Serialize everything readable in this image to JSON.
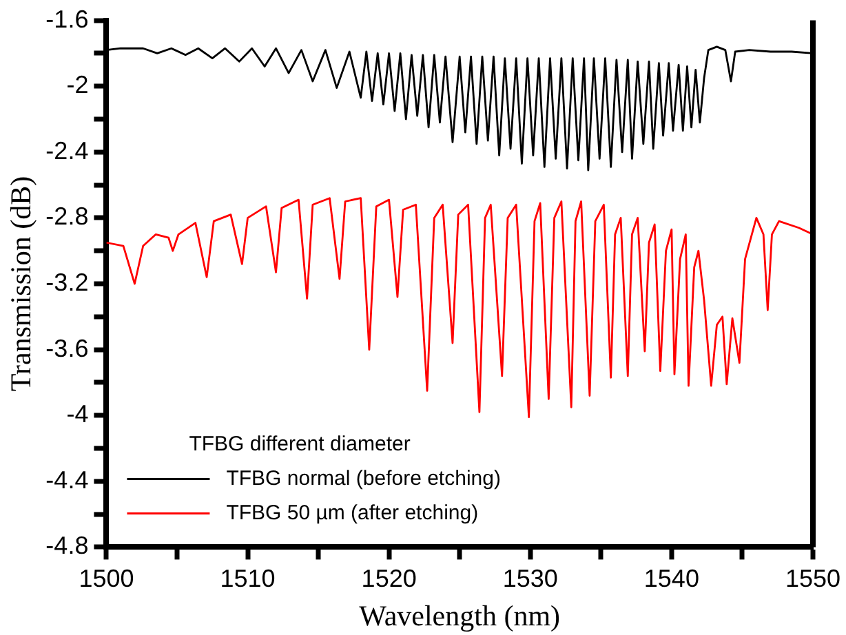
{
  "chart_data": {
    "type": "line",
    "xlabel": "Wavelength (nm)",
    "ylabel": "Transmission (dB)",
    "legend_title": "TFBG different diameter",
    "legend": "bottom left",
    "grid": false,
    "marker": "none",
    "line_style": "solid",
    "xlim": [
      1500,
      1550
    ],
    "xticks": [
      1500,
      {
        "value": 1505,
        "label": null
      },
      1510,
      {
        "value": 1515,
        "label": null
      },
      1520,
      {
        "value": 1525,
        "label": null
      },
      1530,
      {
        "value": 1535,
        "label": null
      },
      1540,
      {
        "value": 1545,
        "label": null
      },
      1550
    ],
    "ylim": [
      -4.8,
      -1.6
    ],
    "yticks": [
      -4.8,
      {
        "value": -4.6,
        "label": null
      },
      -4.4,
      {
        "value": -4.2,
        "label": null
      },
      -4,
      {
        "value": -3.8,
        "label": null
      },
      -3.6,
      {
        "value": -3.4,
        "label": null
      },
      -3.2,
      {
        "value": -3,
        "label": null
      },
      -2.8,
      {
        "value": -2.6,
        "label": null
      },
      -2.4,
      {
        "value": -2.2,
        "label": null
      },
      -2,
      {
        "value": -1.8,
        "label": null
      },
      -1.6
    ],
    "series": [
      {
        "name": "TFBG normal (before etching)",
        "color": "#000000",
        "x": [
          1500,
          1501,
          1502.6,
          1503.6,
          1504.6,
          1505.6,
          1506.5,
          1507.5,
          1508.4,
          1509.4,
          1510.3,
          1511.2,
          1512,
          1512.9,
          1513.8,
          1514.6,
          1515.5,
          1516.3,
          1517.2,
          1518,
          1518.4,
          1518.8,
          1519.2,
          1519.6,
          1520,
          1520.4,
          1520.8,
          1521.2,
          1521.6,
          1522,
          1522.4,
          1522.8,
          1523.2,
          1523.6,
          1524,
          1524.5,
          1525,
          1525.4,
          1525.8,
          1526.2,
          1526.6,
          1527,
          1527.4,
          1527.8,
          1528.2,
          1528.6,
          1529,
          1529.4,
          1529.8,
          1530.2,
          1530.6,
          1531,
          1531.4,
          1531.8,
          1532.2,
          1532.6,
          1533,
          1533.4,
          1533.8,
          1534.1,
          1534.5,
          1534.9,
          1535.3,
          1535.7,
          1536.1,
          1536.5,
          1536.9,
          1537.2,
          1537.6,
          1538,
          1538.4,
          1538.7,
          1539.1,
          1539.4,
          1539.8,
          1540.1,
          1540.5,
          1540.8,
          1541.1,
          1541.4,
          1541.7,
          1542,
          1542.3,
          1542.6,
          1543.2,
          1543.8,
          1544.2,
          1544.5,
          1545.5,
          1547,
          1548.5,
          1550
        ],
        "values": [
          -1.78,
          -1.77,
          -1.77,
          -1.8,
          -1.77,
          -1.81,
          -1.77,
          -1.83,
          -1.77,
          -1.85,
          -1.77,
          -1.88,
          -1.77,
          -1.92,
          -1.78,
          -1.97,
          -1.78,
          -2.01,
          -1.79,
          -2.07,
          -1.79,
          -2.09,
          -1.8,
          -2.11,
          -1.8,
          -2.15,
          -1.8,
          -2.2,
          -1.81,
          -2.18,
          -1.81,
          -2.25,
          -1.81,
          -2.22,
          -1.82,
          -2.34,
          -1.82,
          -2.28,
          -1.82,
          -2.35,
          -1.82,
          -2.33,
          -1.82,
          -2.42,
          -1.83,
          -2.38,
          -1.83,
          -2.47,
          -1.83,
          -2.42,
          -1.83,
          -2.49,
          -1.83,
          -2.44,
          -1.83,
          -2.5,
          -1.83,
          -2.45,
          -1.83,
          -2.51,
          -1.83,
          -2.44,
          -1.83,
          -2.49,
          -1.84,
          -2.4,
          -1.84,
          -2.44,
          -1.85,
          -2.35,
          -1.85,
          -2.38,
          -1.86,
          -2.3,
          -1.86,
          -2.27,
          -1.87,
          -2.27,
          -1.88,
          -2.25,
          -1.9,
          -2.22,
          -1.95,
          -1.78,
          -1.76,
          -1.78,
          -1.97,
          -1.79,
          -1.78,
          -1.79,
          -1.79,
          -1.8
        ]
      },
      {
        "name": "TFBG 50 µm (after etching)",
        "color": "#ff0000",
        "x": [
          1500,
          1501.2,
          1502,
          1502.6,
          1503.5,
          1504.4,
          1504.7,
          1505.1,
          1506.3,
          1507.1,
          1507.6,
          1508.8,
          1509.6,
          1510,
          1511.3,
          1512,
          1512.4,
          1513.6,
          1514.2,
          1514.6,
          1515.8,
          1516.5,
          1516.9,
          1518,
          1518.6,
          1519.1,
          1520,
          1520.6,
          1521,
          1521.9,
          1522.7,
          1523.2,
          1523.8,
          1524.5,
          1524.9,
          1525.6,
          1526.4,
          1526.8,
          1527.2,
          1528,
          1528.4,
          1529,
          1529.9,
          1530.3,
          1530.7,
          1531.3,
          1531.7,
          1532.2,
          1532.9,
          1533.2,
          1533.6,
          1534.2,
          1534.6,
          1535.2,
          1535.7,
          1536,
          1536.4,
          1536.9,
          1537.2,
          1537.6,
          1538.1,
          1538.4,
          1538.8,
          1539.2,
          1539.6,
          1540,
          1540.2,
          1540.6,
          1541,
          1541.2,
          1541.6,
          1541.9,
          1542.3,
          1542.8,
          1543.2,
          1543.6,
          1543.9,
          1544.3,
          1544.8,
          1545.2,
          1546,
          1546.5,
          1546.8,
          1547.1,
          1547.6,
          1549,
          1550
        ],
        "values": [
          -2.95,
          -2.97,
          -3.2,
          -2.97,
          -2.9,
          -2.92,
          -3,
          -2.9,
          -2.83,
          -3.16,
          -2.82,
          -2.78,
          -3.08,
          -2.8,
          -2.73,
          -3.13,
          -2.74,
          -2.69,
          -3.29,
          -2.72,
          -2.68,
          -3.17,
          -2.7,
          -2.68,
          -3.6,
          -2.73,
          -2.69,
          -3.28,
          -2.75,
          -2.72,
          -3.85,
          -2.8,
          -2.72,
          -3.56,
          -2.78,
          -2.72,
          -3.98,
          -2.8,
          -2.72,
          -3.76,
          -2.8,
          -2.72,
          -4.01,
          -2.82,
          -2.71,
          -3.9,
          -2.8,
          -2.7,
          -3.95,
          -2.82,
          -2.7,
          -3.88,
          -2.82,
          -2.72,
          -3.77,
          -2.9,
          -2.8,
          -3.76,
          -2.9,
          -2.8,
          -3.61,
          -2.95,
          -2.84,
          -3.73,
          -3,
          -2.87,
          -3.75,
          -3.05,
          -2.9,
          -3.82,
          -3.1,
          -3,
          -3.3,
          -3.82,
          -3.45,
          -3.4,
          -3.81,
          -3.41,
          -3.68,
          -3.05,
          -2.8,
          -2.9,
          -3.36,
          -2.9,
          -2.82,
          -2.86,
          -2.9
        ]
      }
    ]
  }
}
